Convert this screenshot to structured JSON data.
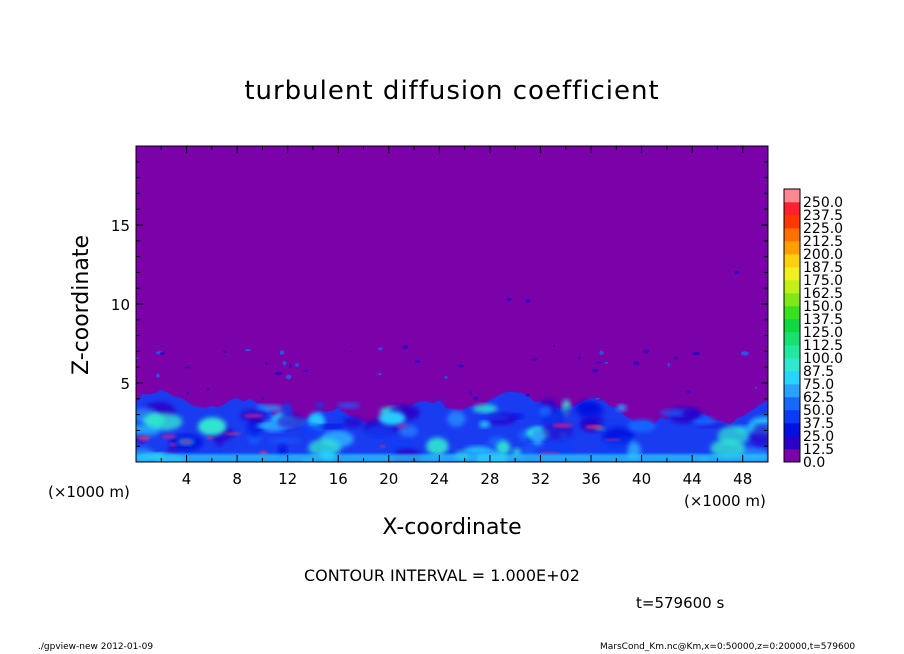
{
  "chart_data": {
    "type": "heatmap",
    "title": "turbulent diffusion coefficient",
    "xlabel": "X-coordinate",
    "ylabel": "Z-coordinate",
    "x_unit_label": "(×1000 m)",
    "y_unit_label": "(×1000 m)",
    "xlim": [
      0,
      50
    ],
    "ylim": [
      0,
      20
    ],
    "x_ticks": [
      "4",
      "8",
      "12",
      "16",
      "20",
      "24",
      "28",
      "32",
      "36",
      "40",
      "44",
      "48"
    ],
    "y_ticks": [
      "5",
      "10",
      "15"
    ],
    "colorbar": {
      "levels": [
        "0.0",
        "12.5",
        "25.0",
        "37.5",
        "50.0",
        "62.5",
        "75.0",
        "87.5",
        "100.0",
        "112.5",
        "125.0",
        "137.5",
        "150.0",
        "162.5",
        "175.0",
        "187.5",
        "200.0",
        "212.5",
        "225.0",
        "237.5",
        "250.0"
      ],
      "colors": [
        "#7a02a8",
        "#2a00c8",
        "#0010e0",
        "#0a3cf5",
        "#1668ff",
        "#2aa0ff",
        "#28d4ff",
        "#30e8d0",
        "#20e8a0",
        "#18e070",
        "#10d840",
        "#38e020",
        "#80e818",
        "#c0f018",
        "#f0f020",
        "#ffd010",
        "#ffa000",
        "#ff7000",
        "#ff3800",
        "#ff2030",
        "#ff8890"
      ]
    },
    "background_value": 0.0,
    "turbulent_layer_top_km": 4
  },
  "annotations": {
    "contour_interval": "CONTOUR INTERVAL = 1.000E+02",
    "time": "t=579600 s",
    "footer_left": "./gpview-new   2012-01-09",
    "footer_right": "MarsCond_Km.nc@Km,x=0:50000,z=0:20000,t=579600"
  }
}
